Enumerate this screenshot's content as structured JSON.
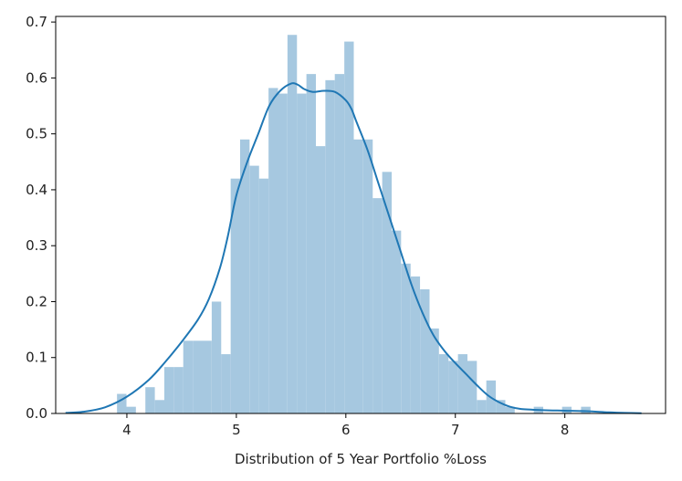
{
  "chart_data": {
    "type": "bar",
    "title": "",
    "xlabel": "Distribution of 5 Year Portfolio %Loss",
    "ylabel": "",
    "xlim": [
      3.35,
      8.92
    ],
    "ylim": [
      0,
      0.71
    ],
    "xticks": [
      4,
      5,
      6,
      7,
      8
    ],
    "yticks": [
      0.0,
      0.1,
      0.2,
      0.3,
      0.4,
      0.5,
      0.6,
      0.7
    ],
    "grid": false,
    "colors": {
      "histogram": "#a6c8e0",
      "kde": "#1f77b4",
      "axis": "#000000"
    },
    "histogram": {
      "bin_width": 0.0865,
      "bins": [
        {
          "x0": 3.91,
          "value": 0.035
        },
        {
          "x0": 3.996,
          "value": 0.012
        },
        {
          "x0": 4.169,
          "value": 0.047
        },
        {
          "x0": 4.256,
          "value": 0.024
        },
        {
          "x0": 4.342,
          "value": 0.083
        },
        {
          "x0": 4.429,
          "value": 0.083
        },
        {
          "x0": 4.515,
          "value": 0.13
        },
        {
          "x0": 4.602,
          "value": 0.13
        },
        {
          "x0": 4.688,
          "value": 0.13
        },
        {
          "x0": 4.775,
          "value": 0.2
        },
        {
          "x0": 4.861,
          "value": 0.106
        },
        {
          "x0": 4.948,
          "value": 0.42
        },
        {
          "x0": 5.034,
          "value": 0.49
        },
        {
          "x0": 5.121,
          "value": 0.443
        },
        {
          "x0": 5.207,
          "value": 0.42
        },
        {
          "x0": 5.294,
          "value": 0.582
        },
        {
          "x0": 5.38,
          "value": 0.572
        },
        {
          "x0": 5.467,
          "value": 0.677
        },
        {
          "x0": 5.553,
          "value": 0.572
        },
        {
          "x0": 5.64,
          "value": 0.607
        },
        {
          "x0": 5.726,
          "value": 0.478
        },
        {
          "x0": 5.813,
          "value": 0.596
        },
        {
          "x0": 5.899,
          "value": 0.607
        },
        {
          "x0": 5.986,
          "value": 0.665
        },
        {
          "x0": 6.072,
          "value": 0.49
        },
        {
          "x0": 6.159,
          "value": 0.49
        },
        {
          "x0": 6.245,
          "value": 0.385
        },
        {
          "x0": 6.332,
          "value": 0.432
        },
        {
          "x0": 6.418,
          "value": 0.327
        },
        {
          "x0": 6.505,
          "value": 0.268
        },
        {
          "x0": 6.591,
          "value": 0.245
        },
        {
          "x0": 6.678,
          "value": 0.222
        },
        {
          "x0": 6.764,
          "value": 0.152
        },
        {
          "x0": 6.851,
          "value": 0.106
        },
        {
          "x0": 6.937,
          "value": 0.094
        },
        {
          "x0": 7.024,
          "value": 0.106
        },
        {
          "x0": 7.11,
          "value": 0.094
        },
        {
          "x0": 7.197,
          "value": 0.024
        },
        {
          "x0": 7.283,
          "value": 0.059
        },
        {
          "x0": 7.37,
          "value": 0.024
        },
        {
          "x0": 7.456,
          "value": 0.012
        },
        {
          "x0": 7.716,
          "value": 0.012
        },
        {
          "x0": 7.975,
          "value": 0.012
        },
        {
          "x0": 8.148,
          "value": 0.012
        }
      ]
    },
    "kde": {
      "x": [
        3.44,
        3.6,
        3.8,
        4.0,
        4.2,
        4.35,
        4.5,
        4.65,
        4.75,
        4.85,
        4.92,
        5.0,
        5.1,
        5.2,
        5.3,
        5.4,
        5.5,
        5.56,
        5.62,
        5.7,
        5.8,
        5.9,
        6.0,
        6.05,
        6.1,
        6.2,
        6.3,
        6.4,
        6.5,
        6.6,
        6.7,
        6.8,
        6.9,
        7.0,
        7.1,
        7.2,
        7.3,
        7.4,
        7.5,
        7.6,
        7.8,
        8.0,
        8.2,
        8.4,
        8.55,
        8.7
      ],
      "y": [
        0.001,
        0.003,
        0.011,
        0.03,
        0.06,
        0.092,
        0.128,
        0.168,
        0.205,
        0.26,
        0.315,
        0.39,
        0.45,
        0.5,
        0.55,
        0.577,
        0.59,
        0.588,
        0.58,
        0.575,
        0.577,
        0.575,
        0.56,
        0.545,
        0.52,
        0.47,
        0.41,
        0.35,
        0.29,
        0.23,
        0.18,
        0.14,
        0.112,
        0.09,
        0.07,
        0.05,
        0.032,
        0.02,
        0.012,
        0.008,
        0.006,
        0.005,
        0.004,
        0.002,
        0.001,
        0.0005
      ]
    }
  }
}
